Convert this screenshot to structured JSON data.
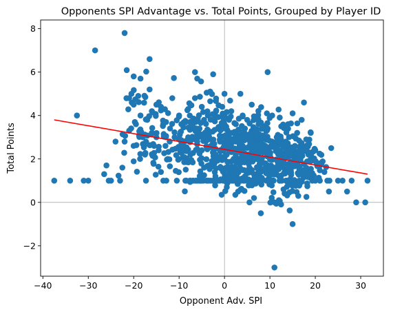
{
  "chart_data": {
    "type": "scatter",
    "title": "Opponents SPI Advantage vs. Total Points, Grouped by Player ID",
    "xlabel": "Opponent Adv. SPI",
    "ylabel": "Total Points",
    "xlim": [
      -40.5,
      35
    ],
    "ylim": [
      -3.4,
      8.4
    ],
    "xticks": [
      -40,
      -30,
      -20,
      -10,
      0,
      10,
      20,
      30
    ],
    "yticks": [
      -2,
      0,
      2,
      4,
      6,
      8
    ],
    "xtick_labels": [
      "−40",
      "−30",
      "−20",
      "−10",
      "0",
      "10",
      "20",
      "30"
    ],
    "ytick_labels": [
      "−2",
      "0",
      "2",
      "4",
      "6",
      "8"
    ],
    "grid": false,
    "reference_lines": {
      "x": 0,
      "y": 0,
      "color": "#a9a9a9"
    },
    "point_color": "#1f77b4",
    "trend": {
      "x": [
        -37.5,
        31.5
      ],
      "y": [
        3.8,
        1.3
      ],
      "color": "#ff0000"
    },
    "points": [
      [
        -37.5,
        1.0
      ],
      [
        -34,
        1.0
      ],
      [
        -31,
        1.0
      ],
      [
        -30,
        1.0
      ],
      [
        -32.5,
        4.0
      ],
      [
        -28.5,
        7.0
      ],
      [
        -26.5,
        1.3
      ],
      [
        -26,
        1.7
      ],
      [
        -25.5,
        1.0
      ],
      [
        -25,
        1.0
      ],
      [
        -24,
        2.8
      ],
      [
        -23,
        1.0
      ],
      [
        -22.5,
        1.6
      ],
      [
        -22,
        7.8
      ],
      [
        -21,
        3.3
      ],
      [
        -22,
        2.8
      ],
      [
        -21,
        4.8
      ],
      [
        -20.5,
        5.0
      ],
      [
        -20,
        5.8
      ],
      [
        -20,
        4.5
      ],
      [
        -19.5,
        3.6
      ],
      [
        -19,
        4.9
      ],
      [
        -18.5,
        5.7
      ],
      [
        -18.5,
        4.0
      ],
      [
        -18,
        3.0
      ],
      [
        -17.5,
        2.2
      ],
      [
        -17,
        3.8
      ],
      [
        -16.5,
        6.6
      ],
      [
        -16.5,
        5.2
      ],
      [
        -16,
        4.2
      ],
      [
        -16,
        3.2
      ],
      [
        -15.5,
        2.6
      ],
      [
        -15,
        4.5
      ],
      [
        -15,
        3.0
      ],
      [
        -14.5,
        2.4
      ],
      [
        -14,
        1.4
      ],
      [
        -14,
        4.4
      ],
      [
        -13.5,
        3.6
      ],
      [
        -13,
        2.6
      ],
      [
        -12.5,
        2.0
      ],
      [
        -12,
        3.4
      ],
      [
        -11.5,
        4.8
      ],
      [
        -11,
        3.0
      ],
      [
        -10.5,
        1.0
      ],
      [
        -10,
        4.0
      ],
      [
        -10,
        2.0
      ],
      [
        -9.5,
        3.6
      ],
      [
        -9,
        2.6
      ],
      [
        -8.5,
        1.0
      ],
      [
        -8,
        4.3
      ],
      [
        -8,
        3.0
      ],
      [
        -7.5,
        2.2
      ],
      [
        -7,
        3.6
      ],
      [
        -6.5,
        6.0
      ],
      [
        -6.5,
        4.8
      ],
      [
        -6,
        5.7
      ],
      [
        -6,
        2.8
      ],
      [
        -5.5,
        1.0
      ],
      [
        -5.5,
        3.4
      ],
      [
        -5,
        4.4
      ],
      [
        -5,
        2.4
      ],
      [
        -4.5,
        1.6
      ],
      [
        -4.5,
        3.8
      ],
      [
        -4,
        2.9
      ],
      [
        -3.5,
        1.0
      ],
      [
        -3.5,
        3.2
      ],
      [
        -3,
        2.6
      ],
      [
        -2.5,
        5.9
      ],
      [
        -2.5,
        3.8
      ],
      [
        -2,
        2.2
      ],
      [
        -2,
        1.2
      ],
      [
        -1.5,
        3.4
      ],
      [
        -1,
        2.8
      ],
      [
        -1,
        1.6
      ],
      [
        -0.5,
        4.4
      ],
      [
        -0.5,
        2.4
      ],
      [
        0,
        5.0
      ],
      [
        0,
        3.6
      ],
      [
        0,
        3.0
      ],
      [
        0.5,
        0.7
      ],
      [
        0.5,
        2.2
      ],
      [
        1,
        3.8
      ],
      [
        1,
        2.6
      ],
      [
        1,
        1.4
      ],
      [
        1.5,
        4.2
      ],
      [
        1.5,
        3.2
      ],
      [
        2,
        2.0
      ],
      [
        2,
        1.0
      ],
      [
        2.5,
        2.8
      ],
      [
        2.5,
        3.6
      ],
      [
        3,
        0.5
      ],
      [
        3,
        3.0
      ],
      [
        3.5,
        5.0
      ],
      [
        3.5,
        1.8
      ],
      [
        4,
        2.6
      ],
      [
        4,
        4.0
      ],
      [
        4.5,
        3.4
      ],
      [
        4.5,
        1.2
      ],
      [
        5,
        2.2
      ],
      [
        5,
        3.8
      ],
      [
        5.5,
        1.6
      ],
      [
        5.5,
        0.0
      ],
      [
        6,
        2.8
      ],
      [
        6,
        4.5
      ],
      [
        6.5,
        0.2
      ],
      [
        6.5,
        3.2
      ],
      [
        7,
        2.0
      ],
      [
        7,
        1.0
      ],
      [
        7.5,
        3.6
      ],
      [
        7.5,
        2.4
      ],
      [
        8,
        -0.5
      ],
      [
        8,
        1.4
      ],
      [
        8.5,
        3.0
      ],
      [
        9,
        2.6
      ],
      [
        9,
        1.8
      ],
      [
        9.5,
        6.0
      ],
      [
        9.5,
        3.4
      ],
      [
        10,
        2.2
      ],
      [
        10,
        1.0
      ],
      [
        10.5,
        2.8
      ],
      [
        10.5,
        4.0
      ],
      [
        11,
        -3.0
      ],
      [
        11,
        0.0
      ],
      [
        11,
        1.6
      ],
      [
        11.5,
        3.0
      ],
      [
        12,
        2.4
      ],
      [
        12,
        1.2
      ],
      [
        12.5,
        3.5
      ],
      [
        13,
        2.0
      ],
      [
        13,
        0.6
      ],
      [
        13.5,
        2.8
      ],
      [
        14,
        1.4
      ],
      [
        14,
        3.6
      ],
      [
        14.5,
        2.2
      ],
      [
        15,
        -1.0
      ],
      [
        15,
        1.0
      ],
      [
        15,
        4.1
      ],
      [
        15.5,
        2.6
      ],
      [
        16,
        3.2
      ],
      [
        16,
        1.8
      ],
      [
        16.5,
        0.8
      ],
      [
        17,
        2.4
      ],
      [
        17,
        3.8
      ],
      [
        17.5,
        4.6
      ],
      [
        18,
        1.6
      ],
      [
        18,
        2.9
      ],
      [
        18.5,
        2.2
      ],
      [
        19,
        1.4
      ],
      [
        19,
        3.2
      ],
      [
        19.5,
        2.0
      ],
      [
        20,
        1.0
      ],
      [
        20,
        2.4
      ],
      [
        21,
        1.0
      ],
      [
        22,
        1.4
      ],
      [
        23,
        0.5
      ],
      [
        23.5,
        2.5
      ],
      [
        25,
        1.0
      ],
      [
        26,
        1.0
      ],
      [
        27,
        0.5
      ],
      [
        28,
        1.0
      ],
      [
        29,
        0.0
      ],
      [
        31,
        0.0
      ],
      [
        31.5,
        1.0
      ]
    ],
    "density_regions": [
      {
        "cx": -12,
        "cy": 3.0,
        "sx": 4.0,
        "sy": 1.0,
        "n": 70,
        "seed": 11
      },
      {
        "cx": -5,
        "cy": 2.8,
        "sx": 3.5,
        "sy": 0.9,
        "n": 110,
        "seed": 23
      },
      {
        "cx": 2,
        "cy": 2.5,
        "sx": 3.5,
        "sy": 0.9,
        "n": 160,
        "seed": 37
      },
      {
        "cx": 8,
        "cy": 2.2,
        "sx": 3.5,
        "sy": 0.9,
        "n": 170,
        "seed": 41
      },
      {
        "cx": 14,
        "cy": 1.9,
        "sx": 3.0,
        "sy": 0.8,
        "n": 120,
        "seed": 53
      },
      {
        "cx": 18,
        "cy": 1.7,
        "sx": 2.0,
        "sy": 0.6,
        "n": 60,
        "seed": 67
      },
      {
        "cx": -18,
        "cy": 3.5,
        "sx": 2.5,
        "sy": 1.1,
        "n": 35,
        "seed": 71
      },
      {
        "cx": 6,
        "cy": 1.0,
        "sx": 7.0,
        "sy": 0.05,
        "n": 60,
        "seed": 83
      },
      {
        "cx": -8,
        "cy": 1.0,
        "sx": 8.0,
        "sy": 0.05,
        "n": 30,
        "seed": 97
      }
    ]
  }
}
